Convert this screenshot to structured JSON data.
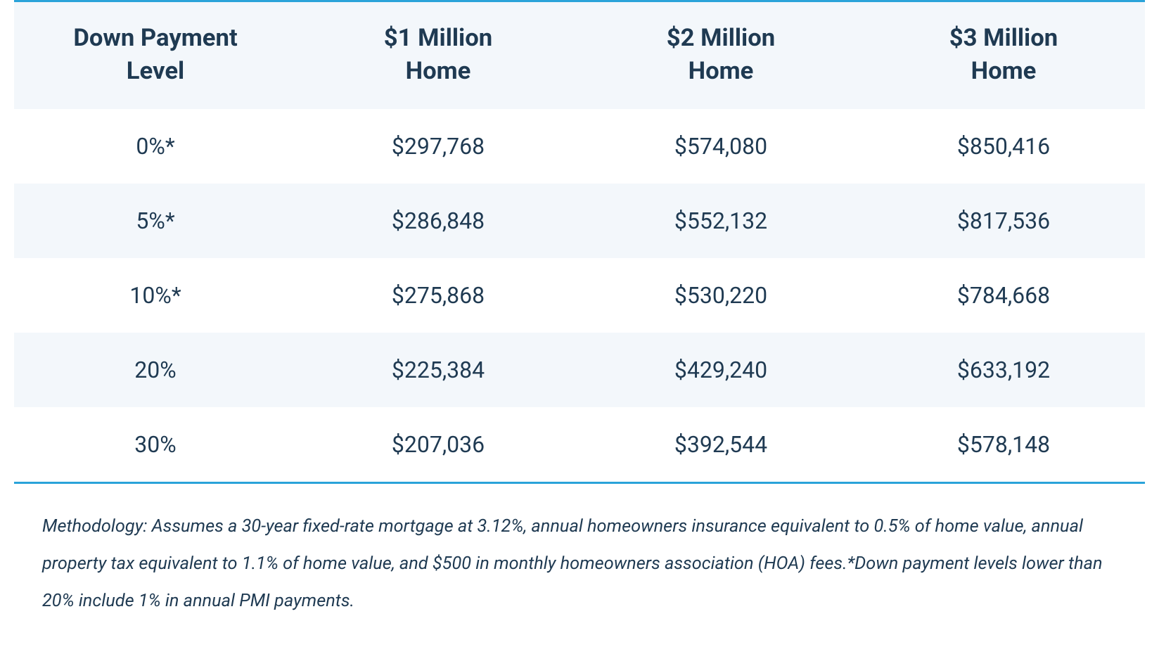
{
  "table": {
    "type": "table",
    "text_color": "#1f3a52",
    "rule_color": "#2aa3d9",
    "header_bg": "#f3f7fb",
    "row_stripe_bg_even": "#f3f7fb",
    "row_stripe_bg_odd": "#ffffff",
    "header_font_size_pt": 26,
    "cell_font_size_pt": 24,
    "columns": [
      {
        "line1": "Down Payment",
        "line2": "Level"
      },
      {
        "line1": "$1 Million",
        "line2": "Home"
      },
      {
        "line1": "$2 Million",
        "line2": "Home"
      },
      {
        "line1": "$3 Million",
        "line2": "Home"
      }
    ],
    "rows": [
      [
        "0%*",
        "$297,768",
        "$574,080",
        "$850,416"
      ],
      [
        "5%*",
        "$286,848",
        "$552,132",
        "$817,536"
      ],
      [
        "10%*",
        "$275,868",
        "$530,220",
        "$784,668"
      ],
      [
        "20%",
        "$225,384",
        "$429,240",
        "$633,192"
      ],
      [
        "30%",
        "$207,036",
        "$392,544",
        "$578,148"
      ]
    ]
  },
  "methodology": {
    "text": "Methodology: Assumes a 30-year fixed-rate mortgage at 3.12%, annual homeowners insurance equivalent to 0.5% of home value, annual property tax equivalent to 1.1% of home value, and $500 in monthly homeowners association (HOA) fees.*Down payment levels lower than 20% include 1% in annual PMI payments.",
    "font_size_pt": 19
  }
}
